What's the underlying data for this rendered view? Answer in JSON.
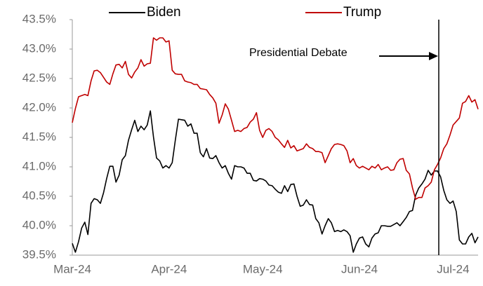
{
  "chart_data": {
    "type": "line",
    "categories": [
      "Mar-24",
      null,
      null,
      null,
      null,
      null,
      null,
      null,
      null,
      null,
      null,
      null,
      null,
      null,
      null,
      null,
      null,
      null,
      null,
      null,
      null,
      null,
      null,
      null,
      null,
      null,
      null,
      null,
      null,
      null,
      null,
      "Apr-24",
      null,
      null,
      null,
      null,
      null,
      null,
      null,
      null,
      null,
      null,
      null,
      null,
      null,
      null,
      null,
      null,
      null,
      null,
      null,
      null,
      null,
      null,
      null,
      null,
      null,
      null,
      null,
      null,
      null,
      "May-24",
      null,
      null,
      null,
      null,
      null,
      null,
      null,
      null,
      null,
      null,
      null,
      null,
      null,
      null,
      null,
      null,
      null,
      null,
      null,
      null,
      null,
      null,
      null,
      null,
      null,
      null,
      null,
      null,
      null,
      null,
      "Jun-24",
      null,
      null,
      null,
      null,
      null,
      null,
      null,
      null,
      null,
      null,
      null,
      null,
      null,
      null,
      null,
      null,
      null,
      null,
      null,
      null,
      null,
      null,
      null,
      null,
      null,
      null,
      null,
      null,
      null,
      "Jul-24",
      null,
      null,
      null,
      null,
      null,
      null,
      null,
      null
    ],
    "series": [
      {
        "name": "Biden",
        "color": "#000000",
        "values": [
          39.7,
          39.55,
          39.73,
          39.96,
          40.06,
          39.85,
          40.38,
          40.46,
          40.44,
          40.38,
          40.56,
          40.8,
          41.01,
          41.01,
          40.74,
          40.86,
          41.12,
          41.19,
          41.45,
          41.63,
          41.79,
          41.6,
          41.69,
          41.63,
          41.71,
          41.95,
          41.51,
          41.15,
          41.1,
          40.98,
          41.02,
          40.98,
          41.07,
          41.45,
          41.81,
          41.8,
          41.79,
          41.69,
          41.73,
          41.57,
          41.57,
          41.24,
          41.17,
          41.31,
          41.15,
          41.14,
          41.19,
          41.07,
          40.98,
          41.02,
          40.89,
          40.79,
          41.02,
          41.0,
          41.0,
          40.98,
          40.89,
          40.89,
          40.77,
          40.76,
          40.8,
          40.79,
          40.76,
          40.69,
          40.68,
          40.62,
          40.57,
          40.55,
          40.68,
          40.58,
          40.7,
          40.71,
          40.5,
          40.33,
          40.35,
          40.44,
          40.36,
          40.35,
          40.12,
          40.05,
          39.86,
          40.0,
          40.12,
          40.05,
          39.9,
          39.92,
          39.9,
          39.93,
          39.9,
          39.83,
          39.55,
          39.69,
          39.79,
          39.81,
          39.69,
          39.64,
          39.79,
          39.86,
          39.88,
          40.0,
          40.0,
          39.99,
          39.99,
          40.02,
          40.05,
          40.0,
          40.07,
          40.14,
          40.24,
          40.26,
          40.52,
          40.64,
          40.71,
          40.79,
          40.94,
          40.86,
          40.93,
          40.93,
          40.83,
          40.6,
          40.44,
          40.38,
          40.42,
          40.24,
          39.76,
          39.69,
          39.69,
          39.81,
          39.87,
          39.71,
          39.81
        ]
      },
      {
        "name": "Trump",
        "color": "#c00000",
        "values": [
          41.75,
          41.99,
          42.19,
          42.21,
          42.23,
          42.21,
          42.46,
          42.63,
          42.64,
          42.6,
          42.52,
          42.44,
          42.4,
          42.58,
          42.73,
          42.74,
          42.68,
          42.79,
          42.57,
          42.51,
          42.61,
          42.68,
          42.82,
          42.71,
          42.75,
          42.76,
          43.19,
          43.15,
          43.19,
          43.19,
          43.12,
          43.14,
          42.64,
          42.58,
          42.57,
          42.57,
          42.46,
          42.44,
          42.43,
          42.4,
          42.4,
          42.33,
          42.32,
          42.31,
          42.23,
          42.17,
          42.08,
          41.74,
          41.88,
          42.07,
          41.98,
          41.79,
          41.6,
          41.62,
          41.6,
          41.65,
          41.67,
          41.76,
          41.81,
          41.92,
          41.62,
          41.5,
          41.62,
          41.65,
          41.6,
          41.5,
          41.46,
          41.39,
          41.33,
          41.45,
          41.32,
          41.36,
          41.27,
          41.29,
          41.31,
          41.39,
          41.33,
          41.31,
          41.26,
          41.26,
          41.24,
          41.07,
          41.19,
          41.31,
          41.38,
          41.39,
          41.38,
          41.36,
          41.27,
          41.07,
          41.14,
          41.02,
          40.98,
          41.01,
          40.98,
          40.95,
          41.01,
          40.98,
          41.04,
          40.95,
          40.98,
          41.0,
          40.94,
          40.95,
          41.07,
          41.13,
          41.14,
          40.94,
          40.88,
          40.64,
          40.45,
          40.48,
          40.48,
          40.64,
          40.68,
          40.74,
          40.95,
          41.04,
          41.15,
          41.31,
          41.39,
          41.54,
          41.71,
          41.77,
          41.83,
          42.08,
          42.11,
          42.21,
          42.1,
          42.14,
          41.98
        ]
      }
    ],
    "annotation": "Presidential Debate",
    "ylim": [
      39.5,
      43.5
    ],
    "yticks": [
      {
        "value": 39.5,
        "label": "39.5%"
      },
      {
        "value": 40,
        "label": "40.0%"
      },
      {
        "value": 40.5,
        "label": "40.5%"
      },
      {
        "value": 41,
        "label": "41.0%"
      },
      {
        "value": 41.5,
        "label": "41.5%"
      },
      {
        "value": 42,
        "label": "42.0%"
      },
      {
        "value": 42.5,
        "label": "42.5%"
      },
      {
        "value": 43,
        "label": "43.0%"
      },
      {
        "value": 43.5,
        "label": "43.5%"
      }
    ],
    "grid": false
  }
}
